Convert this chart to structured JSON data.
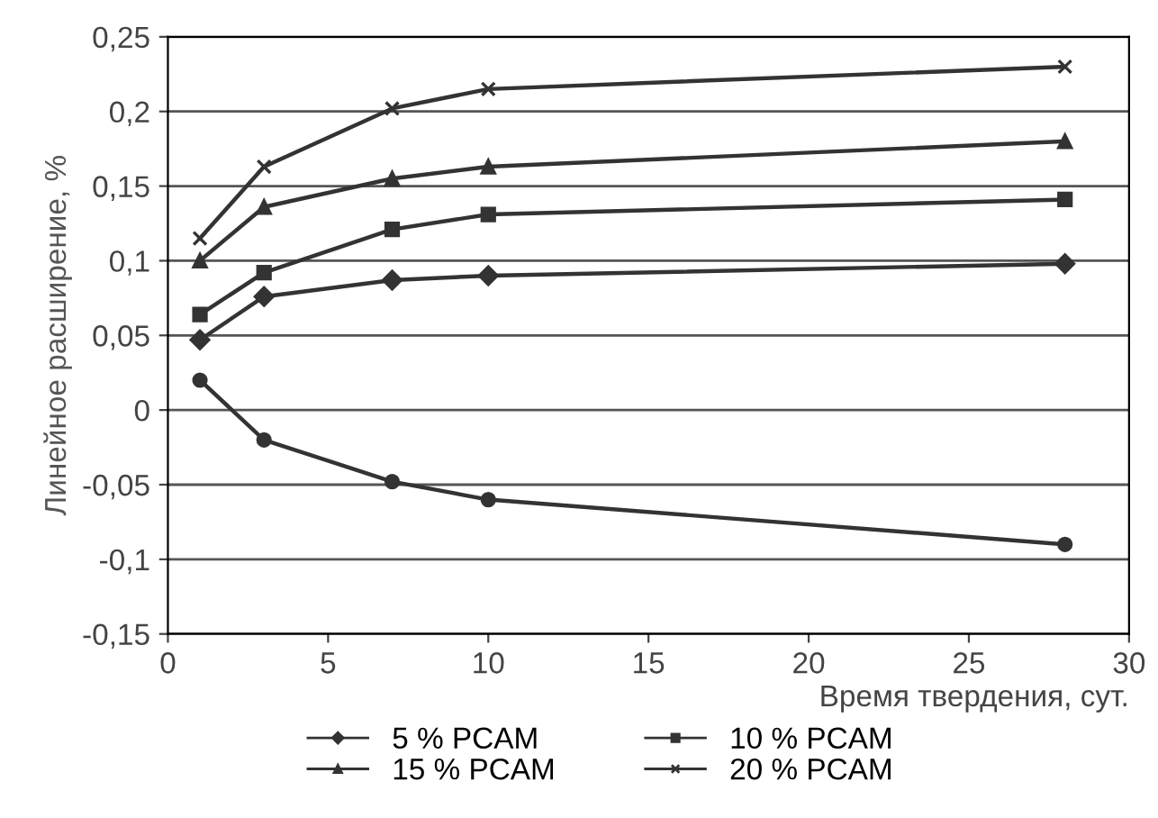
{
  "chart_data": {
    "type": "line",
    "xlabel": "Время твердения, сут.",
    "ylabel": "Линейное расширение, %",
    "xlim": [
      0,
      30
    ],
    "xticks": [
      0,
      5,
      10,
      15,
      20,
      25,
      30
    ],
    "ylim": [
      -0.15,
      0.25
    ],
    "yticks": [
      {
        "value": -0.15,
        "label": "-0,15"
      },
      {
        "value": -0.1,
        "label": "-0,1"
      },
      {
        "value": -0.05,
        "label": "-0,05"
      },
      {
        "value": 0,
        "label": "0"
      },
      {
        "value": 0.05,
        "label": "0,05"
      },
      {
        "value": 0.1,
        "label": "0,1"
      },
      {
        "value": 0.15,
        "label": "0,15"
      },
      {
        "value": 0.2,
        "label": "0,2"
      },
      {
        "value": 0.25,
        "label": "0,25"
      }
    ],
    "grid": "y",
    "legend": "bottom",
    "series": [
      {
        "name": "5 % PCAM",
        "color": "#333333",
        "marker": "diamond",
        "x": [
          1,
          3,
          7,
          10,
          28
        ],
        "values": [
          0.047,
          0.076,
          0.087,
          0.09,
          0.098
        ]
      },
      {
        "name": "10 % PCAM",
        "color": "#333333",
        "marker": "square",
        "x": [
          1,
          3,
          7,
          10,
          28
        ],
        "values": [
          0.064,
          0.092,
          0.121,
          0.131,
          0.141
        ]
      },
      {
        "name": "15 % PCAM",
        "color": "#333333",
        "marker": "triangle",
        "x": [
          1,
          3,
          7,
          10,
          28
        ],
        "values": [
          0.1,
          0.136,
          0.155,
          0.163,
          0.18
        ]
      },
      {
        "name": "20 % PCAM",
        "color": "#333333",
        "marker": "cross",
        "x": [
          1,
          3,
          7,
          10,
          28
        ],
        "values": [
          0.115,
          0.163,
          0.202,
          0.215,
          0.23
        ]
      },
      {
        "color": "#333333",
        "marker": "circle",
        "x": [
          1,
          3,
          7,
          10,
          28
        ],
        "values": [
          0.02,
          -0.02,
          -0.048,
          -0.06,
          -0.09
        ]
      }
    ]
  }
}
